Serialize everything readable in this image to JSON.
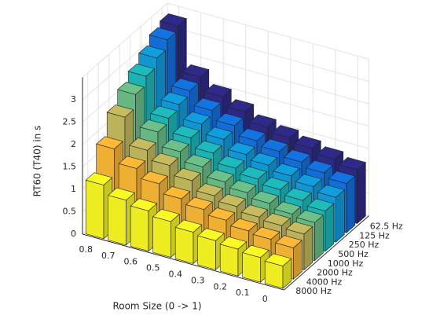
{
  "chart_data": {
    "type": "bar3",
    "xlabel": "Room Size (0 -> 1)",
    "zlabel": "RT60 (T40) in s",
    "categories": [
      "0.8",
      "0.7",
      "0.6",
      "0.5",
      "0.4",
      "0.3",
      "0.2",
      "0.1",
      "0"
    ],
    "series": [
      {
        "name": "8000 Hz",
        "color": "#f9f923",
        "values": [
          1.2,
          1.0,
          0.9,
          0.8,
          0.7,
          0.65,
          0.6,
          0.55,
          0.5
        ]
      },
      {
        "name": "4000 Hz",
        "color": "#fbb936",
        "values": [
          1.8,
          1.5,
          1.3,
          1.1,
          1.0,
          0.9,
          0.8,
          0.75,
          0.7
        ]
      },
      {
        "name": "2000 Hz",
        "color": "#c6bb5e",
        "values": [
          2.3,
          1.7,
          1.5,
          1.3,
          1.1,
          1.0,
          0.9,
          0.85,
          0.8
        ]
      },
      {
        "name": "1000 Hz",
        "color": "#6cc18a",
        "values": [
          2.6,
          1.9,
          1.6,
          1.4,
          1.2,
          1.1,
          1.0,
          0.9,
          0.85
        ]
      },
      {
        "name": "500 Hz",
        "color": "#1dbbbd",
        "values": [
          2.8,
          2.0,
          1.7,
          1.5,
          1.3,
          1.2,
          1.1,
          1.0,
          0.9
        ]
      },
      {
        "name": "250 Hz",
        "color": "#109fde",
        "values": [
          3.0,
          2.1,
          1.8,
          1.6,
          1.4,
          1.3,
          1.2,
          1.1,
          1.0
        ]
      },
      {
        "name": "125 Hz",
        "color": "#1273e3",
        "values": [
          3.2,
          2.2,
          1.9,
          1.7,
          1.5,
          1.4,
          1.3,
          1.2,
          1.1
        ]
      },
      {
        "name": "62.5 Hz",
        "color": "#2e2a8a",
        "values": [
          3.3,
          2.3,
          2.0,
          1.8,
          1.6,
          1.5,
          1.4,
          1.3,
          1.2
        ]
      }
    ],
    "zlim": [
      0,
      3.5
    ],
    "zticks": [
      0,
      0.5,
      1,
      1.5,
      2,
      2.5,
      3
    ],
    "grid": true
  }
}
